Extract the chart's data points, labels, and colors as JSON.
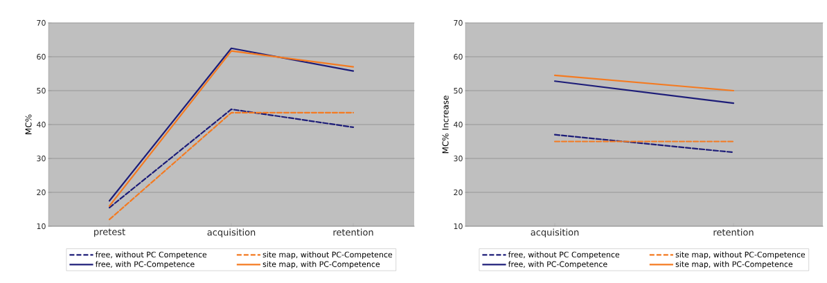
{
  "chart_data": [
    {
      "type": "line",
      "ylabel": "MC%",
      "categories": [
        "pretest",
        "acquisition",
        "retention"
      ],
      "ylim": [
        10,
        70
      ],
      "yticks": [
        10,
        20,
        30,
        40,
        50,
        60,
        70
      ],
      "grid": "y",
      "legend": "bottom",
      "series": [
        {
          "name": "free, without PC Competence",
          "color": "#1c1c78",
          "line_style": "dashed",
          "values": [
            15.5,
            44.5,
            39.2
          ]
        },
        {
          "name": "site map, without PC-Competence",
          "color": "#f47a20",
          "line_style": "dashed",
          "values": [
            12,
            43.5,
            43.5
          ]
        },
        {
          "name": "free, with PC-Competence",
          "color": "#1c1c78",
          "line_style": "solid",
          "values": [
            17.5,
            62.5,
            55.8
          ]
        },
        {
          "name": "site map, with PC-Competence",
          "color": "#f47a20",
          "line_style": "solid",
          "values": [
            16,
            61.7,
            57
          ]
        }
      ]
    },
    {
      "type": "line",
      "ylabel": "MC% Increase",
      "categories": [
        "acquisition",
        "retention"
      ],
      "ylim": [
        10,
        70
      ],
      "yticks": [
        10,
        20,
        30,
        40,
        50,
        60,
        70
      ],
      "grid": "y",
      "legend": "bottom",
      "series": [
        {
          "name": "free, without PC Competence",
          "color": "#1c1c78",
          "line_style": "dashed",
          "values": [
            37,
            31.8
          ]
        },
        {
          "name": "site map, without PC-Competence",
          "color": "#f47a20",
          "line_style": "dashed",
          "values": [
            35,
            35
          ]
        },
        {
          "name": "free, with PC-Competence",
          "color": "#1c1c78",
          "line_style": "solid",
          "values": [
            52.8,
            46.3
          ]
        },
        {
          "name": "site map, with PC-Competence",
          "color": "#f47a20",
          "line_style": "solid",
          "values": [
            54.5,
            50
          ]
        }
      ]
    }
  ]
}
